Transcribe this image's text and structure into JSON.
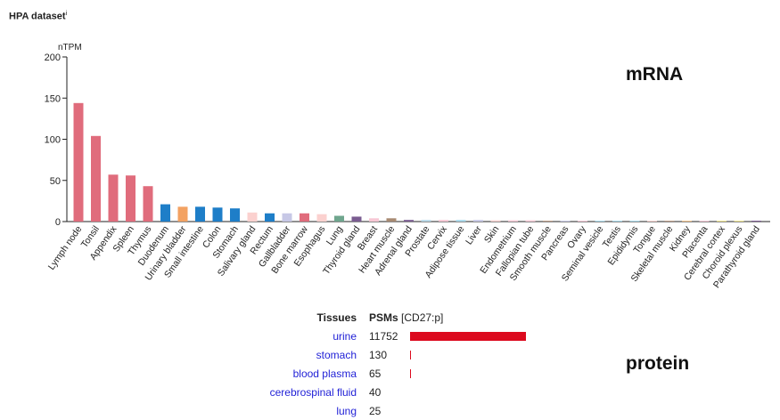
{
  "header": {
    "dataset_title": "HPA dataset",
    "info_marker": "i"
  },
  "mrna_label": "mRNA",
  "protein_label": "protein",
  "chart_data": {
    "type": "bar",
    "ylabel": "nTPM",
    "ylim": [
      0,
      200
    ],
    "yticks": [
      0,
      50,
      100,
      150,
      200
    ],
    "categories": [
      "Lymph node",
      "Tonsil",
      "Appendix",
      "Spleen",
      "Thymus",
      "Duodenum",
      "Urinary bladder",
      "Small intestine",
      "Colon",
      "Stomach",
      "Salivary gland",
      "Rectum",
      "Gallbladder",
      "Bone marrow",
      "Esophagus",
      "Lung",
      "Thyroid gland",
      "Breast",
      "Heart muscle",
      "Adrenal gland",
      "Prostate",
      "Cervix",
      "Adipose tissue",
      "Liver",
      "Skin",
      "Endometrium",
      "Fallopian tube",
      "Smooth muscle",
      "Pancreas",
      "Ovary",
      "Seminal vesicle",
      "Testis",
      "Epididymis",
      "Tongue",
      "Skeletal muscle",
      "Kidney",
      "Placenta",
      "Cerebral cortex",
      "Choroid plexus",
      "Parathyroid gland"
    ],
    "values": [
      144,
      104,
      57,
      56,
      43,
      21,
      18,
      18,
      17,
      16,
      11,
      10,
      10,
      10,
      9,
      7,
      6,
      4,
      4,
      2,
      2,
      2,
      2,
      2,
      1.5,
      1.5,
      1.5,
      1,
      1,
      1,
      1,
      1,
      1,
      1,
      1,
      0.5,
      0.5,
      0.5,
      0.5,
      0.5
    ],
    "colors": [
      "#e06c7c",
      "#e06c7c",
      "#e06c7c",
      "#e06c7c",
      "#e06c7c",
      "#1e7ec8",
      "#f3a262",
      "#1e7ec8",
      "#1e7ec8",
      "#1e7ec8",
      "#fbd1cf",
      "#1e7ec8",
      "#c7c8e6",
      "#e06c7c",
      "#fbd1cf",
      "#6fa68e",
      "#7a5c91",
      "#f7c7d4",
      "#a88a72",
      "#7a5c91",
      "#b7d9e8",
      "#f7c7d4",
      "#a6d9ec",
      "#c7c8e6",
      "#fbd1cf",
      "#f7c7d4",
      "#f7c7d4",
      "#b99a85",
      "#c7c8e6",
      "#f7c7d4",
      "#a6d9ec",
      "#a6d9ec",
      "#a6d9ec",
      "#fbd1cf",
      "#b99a85",
      "#f3c28a",
      "#f7c7d4",
      "#f0e68c",
      "#f0e68c",
      "#7a5c91"
    ]
  },
  "protein": {
    "headers": {
      "tissues": "Tissues",
      "psms": "PSMs",
      "psms_sub": "[CD27:p]"
    },
    "max_value": 11752,
    "rows": [
      {
        "tissue": "urine",
        "value": 11752
      },
      {
        "tissue": "stomach",
        "value": 130
      },
      {
        "tissue": "blood plasma",
        "value": 65
      },
      {
        "tissue": "cerebrospinal fluid",
        "value": 40
      },
      {
        "tissue": "lung",
        "value": 25
      }
    ],
    "bar_color": "#dc0a1e"
  }
}
